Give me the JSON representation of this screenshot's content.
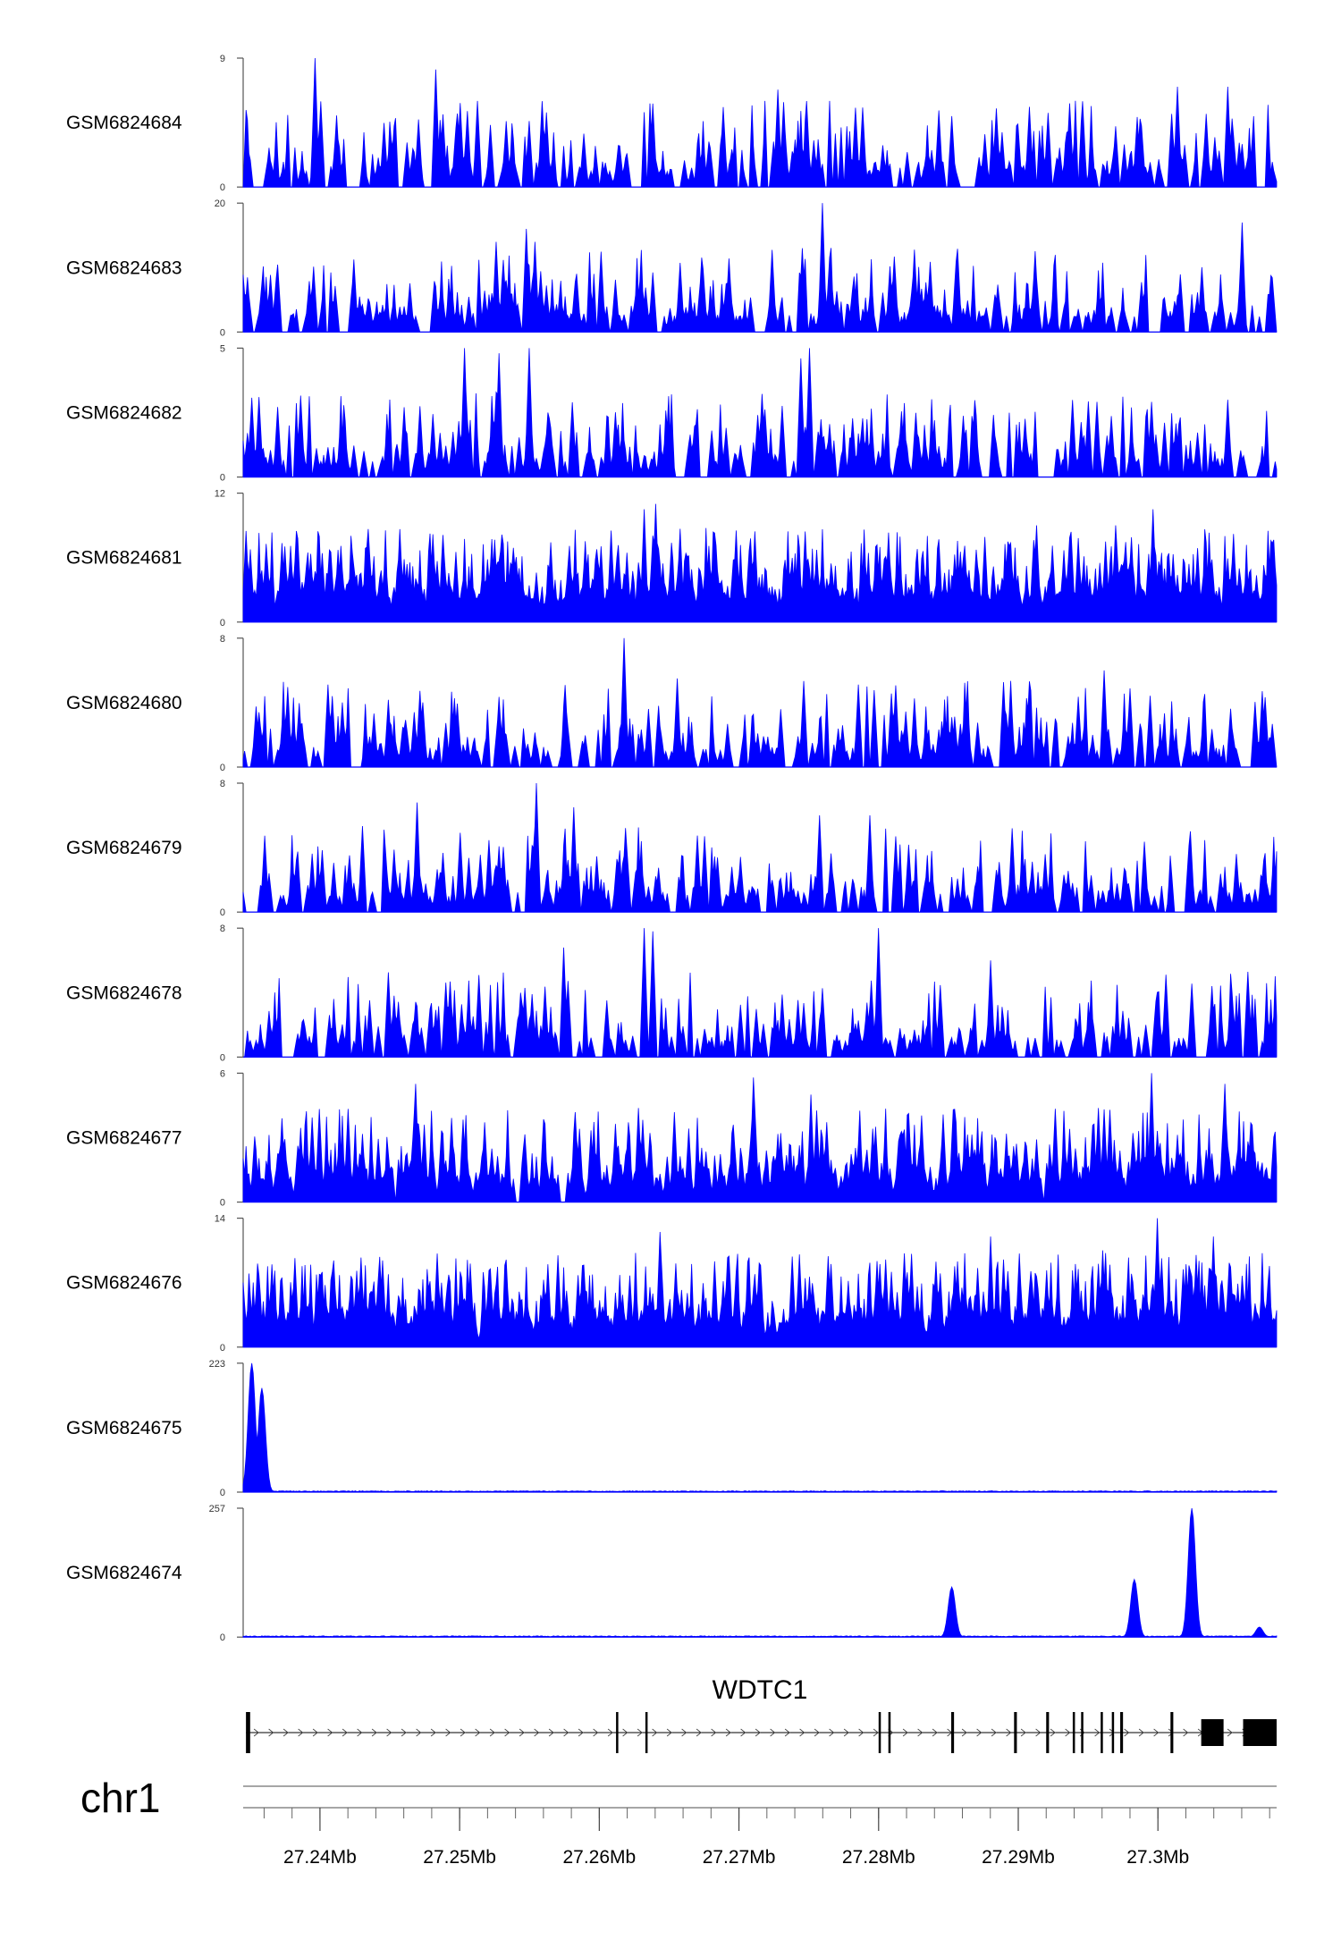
{
  "chart_data": {
    "type": "area",
    "title": "",
    "region": {
      "chromosome": "chr1",
      "start_mb": 27.2345,
      "end_mb": 27.3085
    },
    "track_color": "#0000ff",
    "tracks": [
      {
        "name": "GSM6824684",
        "ymax": 9,
        "y_tick_labels": [
          "9",
          "0"
        ],
        "profile": "sparse-peaks",
        "peaks": [
          [
            27.2396,
            9.0
          ],
          [
            27.2483,
            8.2
          ],
          [
            27.2728,
            6.8
          ],
          [
            27.3014,
            7.0
          ],
          [
            27.305,
            7.0
          ],
          [
            27.2412,
            5.0
          ],
          [
            27.2533,
            4.6
          ]
        ]
      },
      {
        "name": "GSM6824683",
        "ymax": 20,
        "y_tick_labels": [
          "20",
          "0"
        ],
        "profile": "sparse-peaks",
        "peaks": [
          [
            27.2548,
            16.0
          ],
          [
            27.2526,
            14.0
          ],
          [
            27.2554,
            14.0
          ],
          [
            27.276,
            20.0
          ],
          [
            27.306,
            17.0
          ]
        ]
      },
      {
        "name": "GSM6824682",
        "ymax": 5,
        "y_tick_labels": [
          "5",
          "0"
        ],
        "profile": "sparse-peaks",
        "peaks": [
          [
            27.2504,
            5.0
          ],
          [
            27.255,
            5.0
          ],
          [
            27.2528,
            4.8
          ],
          [
            27.2751,
            5.0
          ],
          [
            27.2744,
            4.6
          ]
        ]
      },
      {
        "name": "GSM6824681",
        "ymax": 12,
        "y_tick_labels": [
          "12",
          "0"
        ],
        "profile": "broad",
        "peaks": [
          [
            27.264,
            11.0
          ],
          [
            27.2632,
            10.5
          ],
          [
            27.2913,
            9.0
          ],
          [
            27.2996,
            10.5
          ],
          [
            27.297,
            9.0
          ]
        ]
      },
      {
        "name": "GSM6824680",
        "ymax": 8,
        "y_tick_labels": [
          "8",
          "0"
        ],
        "profile": "sparse-peaks",
        "peaks": [
          [
            27.2618,
            8.0
          ],
          [
            27.2656,
            5.5
          ],
          [
            27.2962,
            6.0
          ],
          [
            27.2895,
            5.0
          ]
        ]
      },
      {
        "name": "GSM6824679",
        "ymax": 8,
        "y_tick_labels": [
          "8",
          "0"
        ],
        "profile": "sparse-peaks",
        "peaks": [
          [
            27.2555,
            8.0
          ],
          [
            27.247,
            6.8
          ],
          [
            27.2582,
            6.5
          ],
          [
            27.2758,
            6.0
          ],
          [
            27.2794,
            6.0
          ]
        ]
      },
      {
        "name": "GSM6824678",
        "ymax": 8,
        "y_tick_labels": [
          "8",
          "0"
        ],
        "profile": "sparse-peaks",
        "peaks": [
          [
            27.2632,
            8.0
          ],
          [
            27.2638,
            7.8
          ],
          [
            27.28,
            8.0
          ],
          [
            27.2575,
            6.8
          ],
          [
            27.288,
            6.0
          ]
        ]
      },
      {
        "name": "GSM6824677",
        "ymax": 6,
        "y_tick_labels": [
          "6",
          "0"
        ],
        "profile": "dense",
        "peaks": [
          [
            27.2469,
            5.5
          ],
          [
            27.271,
            5.8
          ],
          [
            27.2995,
            6.0
          ],
          [
            27.3048,
            5.5
          ],
          [
            27.2752,
            5.0
          ]
        ]
      },
      {
        "name": "GSM6824676",
        "ymax": 14,
        "y_tick_labels": [
          "14",
          "0"
        ],
        "profile": "broad",
        "peaks": [
          [
            27.3,
            14.0
          ],
          [
            27.288,
            12.0
          ],
          [
            27.2643,
            12.5
          ],
          [
            27.296,
            10.5
          ],
          [
            27.304,
            12.0
          ]
        ]
      },
      {
        "name": "GSM6824675",
        "ymax": 223,
        "y_tick_labels": [
          "223",
          "0"
        ],
        "profile": "baseline",
        "peaks": [
          [
            27.2351,
            223.0
          ],
          [
            27.2358,
            180.0
          ]
        ]
      },
      {
        "name": "GSM6824674",
        "ymax": 257,
        "y_tick_labels": [
          "257",
          "0"
        ],
        "profile": "baseline",
        "peaks": [
          [
            27.3024,
            257.0
          ],
          [
            27.2983,
            115.0
          ],
          [
            27.2852,
            100.0
          ],
          [
            27.3073,
            20.0
          ]
        ]
      }
    ],
    "gene": {
      "name": "WDTC1",
      "strand": "+",
      "tx_start_mb": 27.2347,
      "tx_end_mb": 27.3085,
      "exons_mb": [
        [
          27.2347,
          27.235
        ],
        [
          27.2612,
          27.2613
        ],
        [
          27.2633,
          27.2634
        ],
        [
          27.28,
          27.2801
        ],
        [
          27.2807,
          27.2808
        ],
        [
          27.2852,
          27.2854
        ],
        [
          27.2897,
          27.2899
        ],
        [
          27.292,
          27.2922
        ],
        [
          27.2939,
          27.294
        ],
        [
          27.2945,
          27.2946
        ],
        [
          27.2959,
          27.296
        ],
        [
          27.2967,
          27.2968
        ],
        [
          27.2973,
          27.2975
        ],
        [
          27.3009,
          27.3011
        ],
        [
          27.3031,
          27.3047
        ],
        [
          27.3061,
          27.3085
        ]
      ]
    },
    "chromosome_label": "chr1",
    "x_axis": {
      "range_mb": [
        27.2345,
        27.3085
      ],
      "tick_values_mb": [
        27.24,
        27.25,
        27.26,
        27.27,
        27.28,
        27.29,
        27.3
      ],
      "tick_labels": [
        "27.24Mb",
        "27.25Mb",
        "27.26Mb",
        "27.27Mb",
        "27.28Mb",
        "27.29Mb",
        "27.3Mb"
      ],
      "minor_tick_step_mb": 0.002
    }
  }
}
